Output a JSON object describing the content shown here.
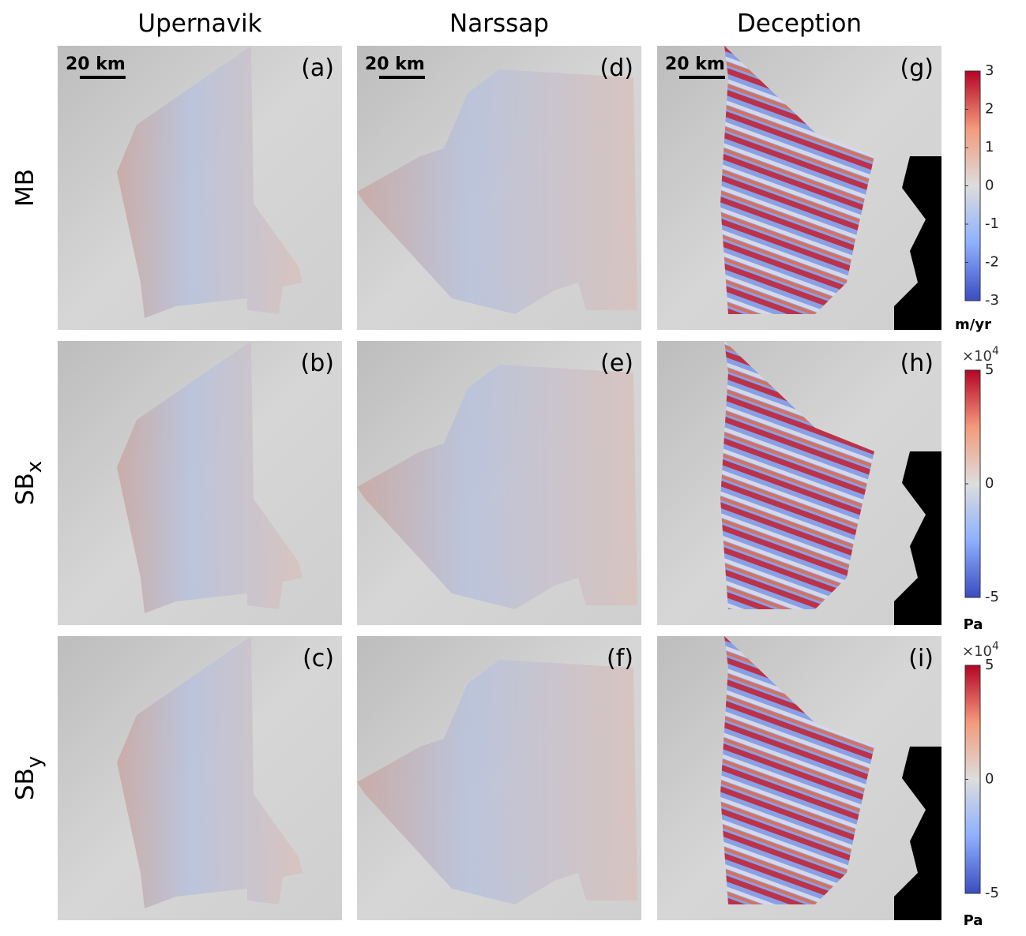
{
  "columns": [
    "Upernavik",
    "Narssap",
    "Deception"
  ],
  "rows": [
    {
      "label": "MB"
    },
    {
      "label": "SB",
      "sub": "x"
    },
    {
      "label": "SB",
      "sub": "y"
    }
  ],
  "panels": [
    [
      "(a)",
      "(b)",
      "(c)"
    ],
    [
      "(d)",
      "(e)",
      "(f)"
    ],
    [
      "(g)",
      "(h)",
      "(i)"
    ]
  ],
  "scale_bar": "20 km",
  "colorbars": [
    {
      "lim": [
        -3,
        3
      ],
      "ticks": [
        3,
        2,
        1,
        0,
        -1,
        -2,
        -3
      ],
      "unit": "m/yr"
    },
    {
      "lim": [
        -5,
        5
      ],
      "ticks": [
        5,
        0,
        -5
      ],
      "multiplier": "×10",
      "exponent": "4",
      "unit": "Pa"
    },
    {
      "lim": [
        -5,
        5
      ],
      "ticks": [
        5,
        0,
        -5
      ],
      "multiplier": "×10",
      "exponent": "4",
      "unit": "Pa"
    }
  ]
}
